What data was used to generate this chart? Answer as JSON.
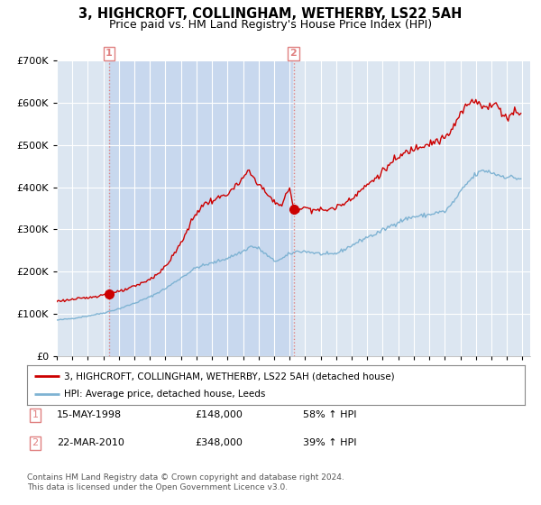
{
  "title": "3, HIGHCROFT, COLLINGHAM, WETHERBY, LS22 5AH",
  "subtitle": "Price paid vs. HM Land Registry's House Price Index (HPI)",
  "title_fontsize": 10.5,
  "subtitle_fontsize": 9,
  "background_color": "#ffffff",
  "plot_bg_color": "#dce6f1",
  "highlight_color": "#c8d8ee",
  "grid_color": "#ffffff",
  "sale1_date": 1998.37,
  "sale1_price": 148000,
  "sale1_label": "1",
  "sale2_date": 2010.25,
  "sale2_price": 348000,
  "sale2_label": "2",
  "hpi_color": "#7fb3d3",
  "price_color": "#cc0000",
  "vline_color": "#e08080",
  "legend_price_label": "3, HIGHCROFT, COLLINGHAM, WETHERBY, LS22 5AH (detached house)",
  "legend_hpi_label": "HPI: Average price, detached house, Leeds",
  "note1_num": "1",
  "note1_date": "15-MAY-1998",
  "note1_price": "£148,000",
  "note1_hpi": "58% ↑ HPI",
  "note2_num": "2",
  "note2_date": "22-MAR-2010",
  "note2_price": "£348,000",
  "note2_hpi": "39% ↑ HPI",
  "footer": "Contains HM Land Registry data © Crown copyright and database right 2024.\nThis data is licensed under the Open Government Licence v3.0.",
  "ylim": [
    0,
    700000
  ],
  "xlim": [
    1995.0,
    2025.5
  ]
}
